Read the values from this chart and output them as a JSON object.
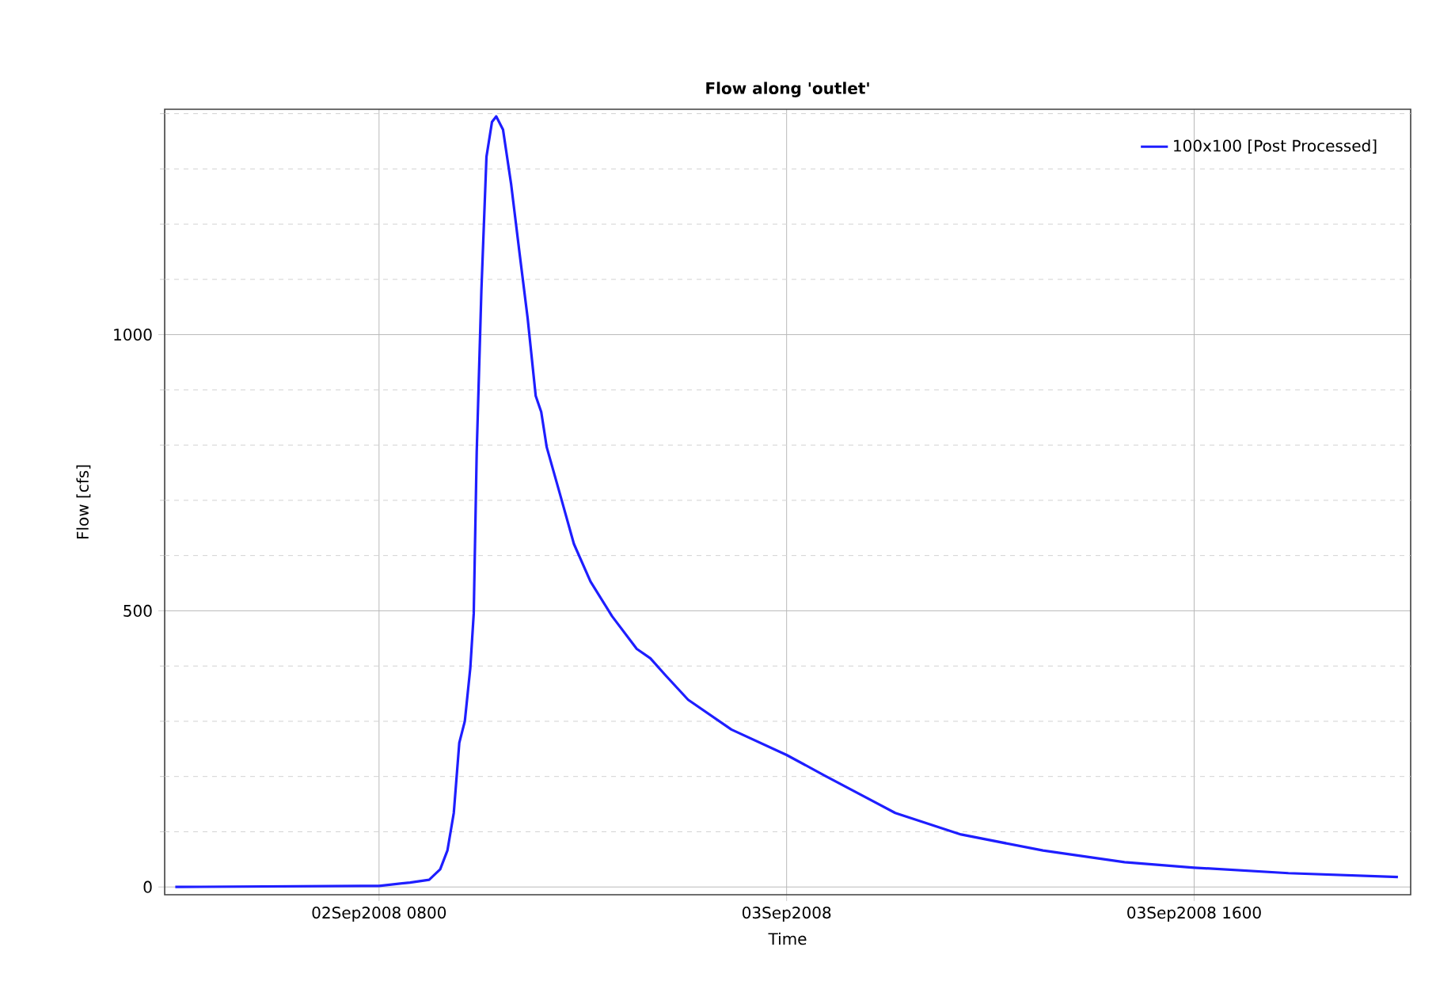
{
  "chart_data": {
    "type": "line",
    "title": "Flow along 'outlet'",
    "xlabel": "Time",
    "ylabel": "Flow [cfs]",
    "x": [
      "2008-09-02T00:00",
      "2008-09-02T07:18",
      "2008-09-02T08:00",
      "2008-09-02T09:13",
      "2008-09-02T09:58",
      "2008-09-02T10:24",
      "2008-09-02T10:41",
      "2008-09-02T10:56",
      "2008-09-02T11:09",
      "2008-09-02T11:22",
      "2008-09-02T11:35",
      "2008-09-02T11:43",
      "2008-09-02T11:50",
      "2008-09-02T12:01",
      "2008-09-02T12:13",
      "2008-09-02T12:26",
      "2008-09-02T12:36",
      "2008-09-02T12:52",
      "2008-09-02T13:11",
      "2008-09-02T13:31",
      "2008-09-02T13:50",
      "2008-09-02T14:09",
      "2008-09-02T14:22",
      "2008-09-02T14:35",
      "2008-09-02T15:07",
      "2008-09-02T15:39",
      "2008-09-02T16:18",
      "2008-09-02T17:09",
      "2008-09-02T18:07",
      "2008-09-02T18:39",
      "2008-09-02T19:15",
      "2008-09-02T20:08",
      "2008-09-02T21:50",
      "2008-09-03T00:00",
      "2008-09-03T01:29",
      "2008-09-03T04:16",
      "2008-09-03T06:51",
      "2008-09-03T10:04",
      "2008-09-03T13:16",
      "2008-09-03T16:00",
      "2008-09-03T19:42",
      "2008-09-04T00:00"
    ],
    "series": [
      {
        "name": "100x100 [Post Processed]",
        "color": "#1e1eff",
        "values": [
          0,
          2,
          2,
          8,
          13,
          32,
          66,
          134,
          261,
          300,
          397,
          495,
          787,
          1079,
          1322,
          1385,
          1395,
          1371,
          1273,
          1147,
          1030,
          889,
          860,
          796,
          709,
          621,
          553,
          490,
          431,
          414,
          383,
          339,
          285,
          239,
          202,
          134,
          95,
          66,
          45,
          35,
          25,
          18
        ]
      }
    ],
    "xlim": [
      "2008-09-01T23:35",
      "2008-09-04T00:30"
    ],
    "xticks": [
      {
        "value": "2008-09-02T08:00",
        "label": "02Sep2008 0800"
      },
      {
        "value": "2008-09-03T00:00",
        "label": "03Sep2008"
      },
      {
        "value": "2008-09-03T16:00",
        "label": "03Sep2008 1600"
      }
    ],
    "ylim": [
      -14,
      1408
    ],
    "yticks": [
      0,
      {
        "value": 100,
        "label": null
      },
      {
        "value": 200,
        "label": null
      },
      {
        "value": 300,
        "label": null
      },
      {
        "value": 400,
        "label": null
      },
      500,
      {
        "value": 600,
        "label": null
      },
      {
        "value": 700,
        "label": null
      },
      {
        "value": 800,
        "label": null
      },
      {
        "value": 900,
        "label": null
      },
      1000,
      {
        "value": 1100,
        "label": null
      },
      {
        "value": 1200,
        "label": null
      },
      {
        "value": 1300,
        "label": null
      },
      {
        "value": 1400,
        "label": null
      }
    ],
    "grid": true,
    "legend": "top right",
    "line_style": "solid"
  }
}
